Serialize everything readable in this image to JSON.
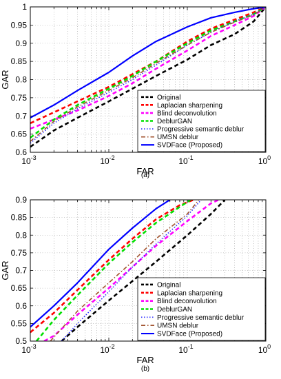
{
  "chart_data": [
    {
      "type": "line",
      "panel_label": "(a)",
      "xlabel": "FAR",
      "ylabel": "GAR",
      "x_scale": "log",
      "xlim": [
        0.001,
        1
      ],
      "ylim": [
        0.6,
        1
      ],
      "x_ticks": [
        0.001,
        0.01,
        0.1,
        1
      ],
      "x_tick_labels": [
        [
          "10",
          "-3"
        ],
        [
          "10",
          "-2"
        ],
        [
          "10",
          "-1"
        ],
        [
          "10",
          "0"
        ]
      ],
      "y_ticks": [
        0.6,
        0.65,
        0.7,
        0.75,
        0.8,
        0.85,
        0.9,
        0.95,
        1
      ],
      "y_tick_labels": [
        "0.6",
        "0.65",
        "0.7",
        "0.75",
        "0.8",
        "0.85",
        "0.9",
        "0.95",
        "1"
      ],
      "grid": true,
      "legend_position": "bottom-right",
      "series": [
        {
          "name": "Original",
          "color": "#000000",
          "dash": "dashed",
          "width": 2.6,
          "x": [
            0.001,
            0.002,
            0.004,
            0.01,
            0.02,
            0.04,
            0.1,
            0.2,
            0.4,
            0.7,
            1
          ],
          "y": [
            0.615,
            0.66,
            0.695,
            0.74,
            0.775,
            0.81,
            0.855,
            0.895,
            0.925,
            0.96,
            1.0
          ]
        },
        {
          "name": "Laplacian sharpening",
          "color": "#ff0000",
          "dash": "dashed",
          "width": 2.6,
          "x": [
            0.001,
            0.002,
            0.004,
            0.01,
            0.02,
            0.04,
            0.1,
            0.2,
            0.4,
            0.7,
            1
          ],
          "y": [
            0.68,
            0.71,
            0.74,
            0.78,
            0.815,
            0.85,
            0.905,
            0.94,
            0.965,
            0.985,
            1.0
          ]
        },
        {
          "name": "Blind deconvolution",
          "color": "#ff00ff",
          "dash": "dashed",
          "width": 2.6,
          "x": [
            0.001,
            0.002,
            0.004,
            0.01,
            0.02,
            0.04,
            0.1,
            0.2,
            0.4,
            0.7,
            1
          ],
          "y": [
            0.665,
            0.69,
            0.715,
            0.755,
            0.79,
            0.83,
            0.88,
            0.92,
            0.95,
            0.975,
            1.0
          ]
        },
        {
          "name": "DeblurGAN",
          "color": "#00e000",
          "dash": "dashed",
          "width": 2.6,
          "x": [
            0.001,
            0.002,
            0.004,
            0.01,
            0.02,
            0.04,
            0.1,
            0.2,
            0.4,
            0.7,
            1
          ],
          "y": [
            0.64,
            0.69,
            0.73,
            0.775,
            0.81,
            0.85,
            0.9,
            0.935,
            0.96,
            0.98,
            1.0
          ]
        },
        {
          "name": "Progressive semantic deblur",
          "color": "#3030ff",
          "dash": "dotted",
          "width": 1.6,
          "x": [
            0.001,
            0.002,
            0.004,
            0.01,
            0.02,
            0.04,
            0.1,
            0.2,
            0.4,
            0.7,
            1
          ],
          "y": [
            0.625,
            0.68,
            0.72,
            0.765,
            0.8,
            0.84,
            0.895,
            0.93,
            0.96,
            0.98,
            1.0
          ]
        },
        {
          "name": "UMSN deblur",
          "color": "#a0522d",
          "dash": "dashdot",
          "width": 1.6,
          "x": [
            0.001,
            0.002,
            0.004,
            0.01,
            0.02,
            0.04,
            0.1,
            0.2,
            0.4,
            0.7,
            1
          ],
          "y": [
            0.63,
            0.685,
            0.725,
            0.77,
            0.805,
            0.845,
            0.895,
            0.93,
            0.958,
            0.978,
            1.0
          ]
        },
        {
          "name": "SVDFace (Proposed)",
          "color": "#0000ff",
          "dash": "solid",
          "width": 2.2,
          "x": [
            0.001,
            0.002,
            0.004,
            0.01,
            0.02,
            0.04,
            0.1,
            0.2,
            0.4,
            0.7,
            1
          ],
          "y": [
            0.695,
            0.73,
            0.77,
            0.82,
            0.865,
            0.905,
            0.945,
            0.97,
            0.985,
            0.995,
            1.0
          ]
        }
      ]
    },
    {
      "type": "line",
      "panel_label": "(b)",
      "xlabel": "FAR",
      "ylabel": "GAR",
      "x_scale": "log",
      "xlim": [
        0.001,
        1
      ],
      "ylim": [
        0.5,
        0.9
      ],
      "x_ticks": [
        0.001,
        0.01,
        0.1,
        1
      ],
      "x_tick_labels": [
        [
          "10",
          "-3"
        ],
        [
          "10",
          "-2"
        ],
        [
          "10",
          "-1"
        ],
        [
          "10",
          "0"
        ]
      ],
      "y_ticks": [
        0.5,
        0.55,
        0.6,
        0.65,
        0.7,
        0.75,
        0.8,
        0.85,
        0.9
      ],
      "y_tick_labels": [
        "0.5",
        "0.55",
        "0.6",
        "0.65",
        "0.7",
        "0.75",
        "0.8",
        "0.85",
        "0.9"
      ],
      "grid": true,
      "legend_position": "bottom-right",
      "series": [
        {
          "name": "Original",
          "color": "#000000",
          "dash": "dashed",
          "width": 2.6,
          "x": [
            0.0025,
            0.004,
            0.01,
            0.02,
            0.04,
            0.1,
            0.2,
            0.3
          ],
          "y": [
            0.5,
            0.54,
            0.615,
            0.67,
            0.725,
            0.8,
            0.86,
            0.9
          ]
        },
        {
          "name": "Laplacian sharpening",
          "color": "#ff0000",
          "dash": "dashed",
          "width": 2.6,
          "x": [
            0.001,
            0.002,
            0.004,
            0.01,
            0.02,
            0.04,
            0.08,
            0.12
          ],
          "y": [
            0.525,
            0.58,
            0.645,
            0.73,
            0.79,
            0.845,
            0.885,
            0.9
          ]
        },
        {
          "name": "Blind deconvolution",
          "color": "#ff00ff",
          "dash": "dashed",
          "width": 2.6,
          "x": [
            0.0015,
            0.002,
            0.004,
            0.01,
            0.02,
            0.04,
            0.1,
            0.2,
            0.25
          ],
          "y": [
            0.5,
            0.515,
            0.575,
            0.65,
            0.71,
            0.77,
            0.84,
            0.89,
            0.9
          ]
        },
        {
          "name": "DeblurGAN",
          "color": "#00e000",
          "dash": "dashed",
          "width": 2.6,
          "x": [
            0.0012,
            0.002,
            0.004,
            0.01,
            0.02,
            0.04,
            0.08,
            0.11
          ],
          "y": [
            0.5,
            0.56,
            0.63,
            0.72,
            0.78,
            0.835,
            0.88,
            0.9
          ]
        },
        {
          "name": "Progressive semantic deblur",
          "color": "#3030ff",
          "dash": "dotted",
          "width": 1.6,
          "x": [
            0.0025,
            0.004,
            0.01,
            0.02,
            0.04,
            0.1,
            0.15
          ],
          "y": [
            0.5,
            0.55,
            0.64,
            0.71,
            0.775,
            0.855,
            0.9
          ]
        },
        {
          "name": "UMSN deblur",
          "color": "#a0522d",
          "dash": "dashdot",
          "width": 1.6,
          "x": [
            0.0018,
            0.004,
            0.01,
            0.02,
            0.04,
            0.1,
            0.14
          ],
          "y": [
            0.5,
            0.585,
            0.665,
            0.725,
            0.79,
            0.86,
            0.9
          ]
        },
        {
          "name": "SVDFace (Proposed)",
          "color": "#0000ff",
          "dash": "solid",
          "width": 2.2,
          "x": [
            0.001,
            0.002,
            0.004,
            0.01,
            0.02,
            0.04,
            0.06
          ],
          "y": [
            0.54,
            0.6,
            0.665,
            0.76,
            0.82,
            0.875,
            0.9
          ]
        }
      ]
    }
  ]
}
